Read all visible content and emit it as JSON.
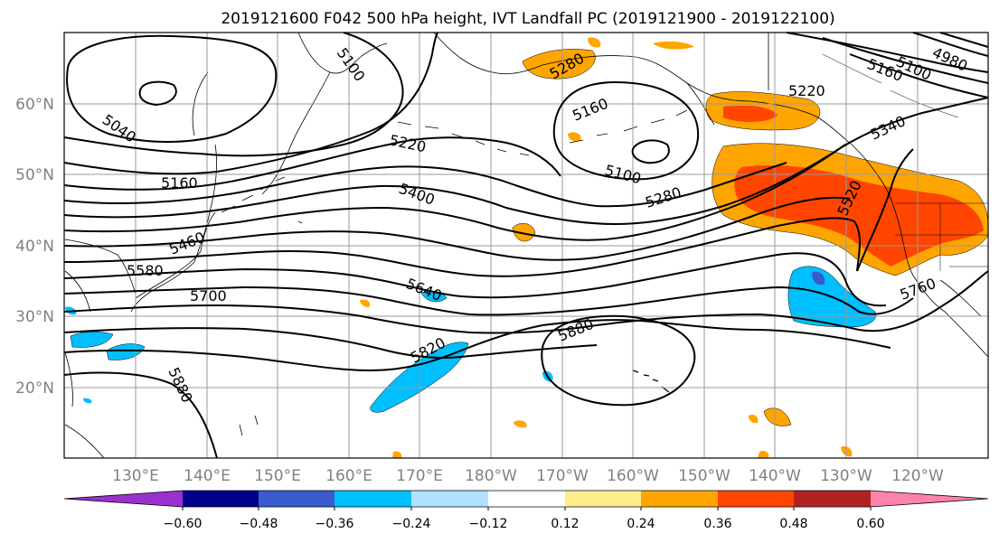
{
  "title": "2019121600 F042 500 hPa height, IVT Landfall PC (2019121900 - 2019122100)",
  "map": {
    "lat_labels": [
      "60°N",
      "50°N",
      "40°N",
      "30°N",
      "20°N"
    ],
    "lon_labels": [
      "130°E",
      "140°E",
      "150°E",
      "160°E",
      "170°E",
      "180°W",
      "170°W",
      "160°W",
      "150°W",
      "140°W",
      "130°W",
      "120°W"
    ],
    "extent": {
      "lon_west": "120°E",
      "lon_east": "110°W",
      "lat_south": "10°N",
      "lat_north": "70°N"
    }
  },
  "contour_labels": {
    "c5100_nw": "5100",
    "c5040": "5040",
    "c5160_w": "5160",
    "c5220_c": "5220",
    "c5400": "5400",
    "c5460": "5460",
    "c5580": "5580",
    "c5700": "5700",
    "c5640": "5640",
    "c5820": "5820",
    "c5880_w": "5880",
    "c5880_c": "5880",
    "c5280_n": "5280",
    "c5160_c": "5160",
    "c5100_c": "5100",
    "c5280_e": "5280",
    "c5220_ne": "5220",
    "c5160_ne": "5160",
    "c5340": "5340",
    "c5520": "5520",
    "c5760": "5760",
    "c4980": "4980",
    "c5100_ne": "5100"
  },
  "colorbar": {
    "ticks": [
      "−0.60",
      "−0.48",
      "−0.36",
      "−0.24",
      "−0.12",
      "0.12",
      "0.24",
      "0.36",
      "0.48",
      "0.60"
    ],
    "colors": [
      "#9932cc",
      "#00008b",
      "#3a5bcc",
      "#00bfff",
      "#b0e2ff",
      "#ffffff",
      "#ffec8b",
      "#ffa500",
      "#ff4500",
      "#b22222",
      "#ff82ab"
    ]
  }
}
